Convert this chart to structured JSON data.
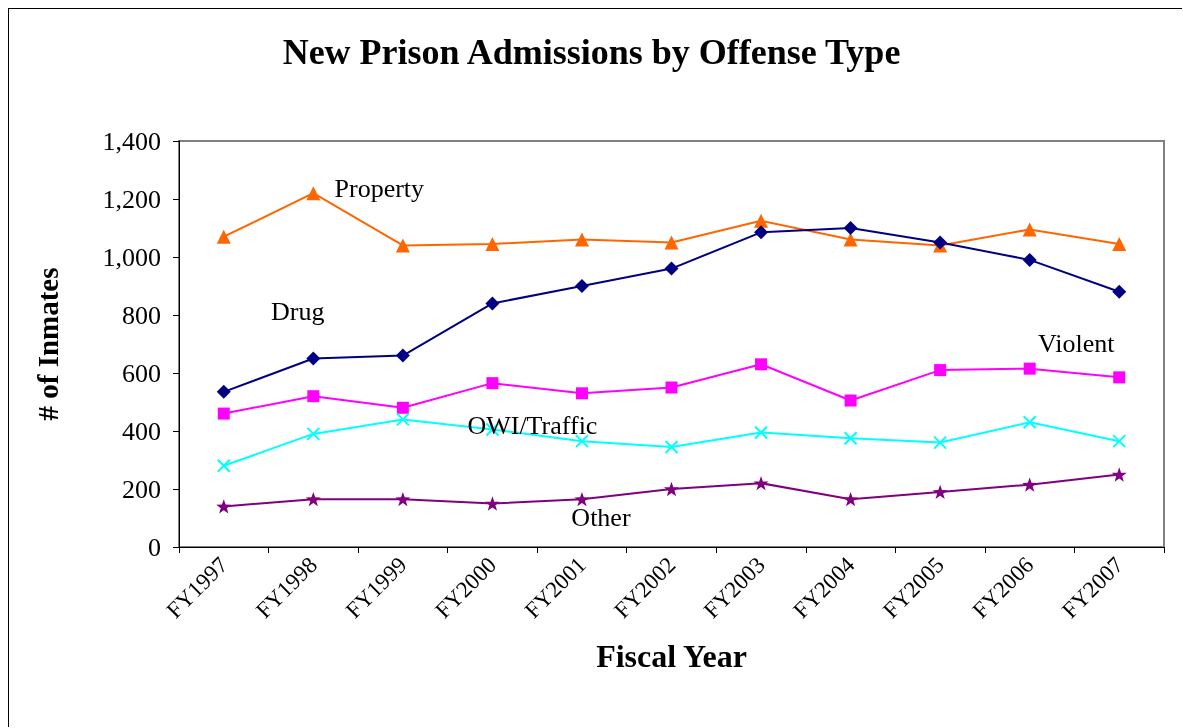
{
  "chart_data": {
    "type": "line",
    "title": "New Prison Admissions by Offense Type",
    "xlabel": "Fiscal Year",
    "ylabel": "# of Inmates",
    "categories": [
      "FY1997",
      "FY1998",
      "FY1999",
      "FY2000",
      "FY2001",
      "FY2002",
      "FY2003",
      "FY2004",
      "FY2005",
      "FY2006",
      "FY2007"
    ],
    "series": [
      {
        "name": "Property",
        "color": "#ff6600",
        "marker": "triangle",
        "values": [
          1070,
          1220,
          1040,
          1045,
          1060,
          1050,
          1125,
          1060,
          1040,
          1095,
          1045
        ]
      },
      {
        "name": "Drug",
        "color": "#000080",
        "marker": "diamond",
        "values": [
          535,
          650,
          660,
          840,
          900,
          960,
          1085,
          1100,
          1050,
          990,
          880
        ]
      },
      {
        "name": "Violent",
        "color": "#ff00ff",
        "marker": "square",
        "values": [
          460,
          520,
          480,
          565,
          530,
          550,
          630,
          505,
          610,
          615,
          585
        ]
      },
      {
        "name": "OWI/Traffic",
        "color": "#00ffff",
        "marker": "cross",
        "values": [
          280,
          390,
          440,
          405,
          365,
          345,
          395,
          375,
          360,
          430,
          365
        ]
      },
      {
        "name": "Other",
        "color": "#800080",
        "marker": "star",
        "values": [
          140,
          165,
          165,
          150,
          165,
          200,
          220,
          165,
          190,
          215,
          250
        ]
      }
    ],
    "ylim": [
      0,
      1400
    ],
    "yticks": [
      0,
      200,
      400,
      600,
      800,
      {
        "value": 1000,
        "label": "1,000"
      },
      {
        "value": 1200,
        "label": "1,200"
      },
      {
        "value": 1400,
        "label": "1,400"
      }
    ],
    "grid": false,
    "line_style": "solid"
  }
}
